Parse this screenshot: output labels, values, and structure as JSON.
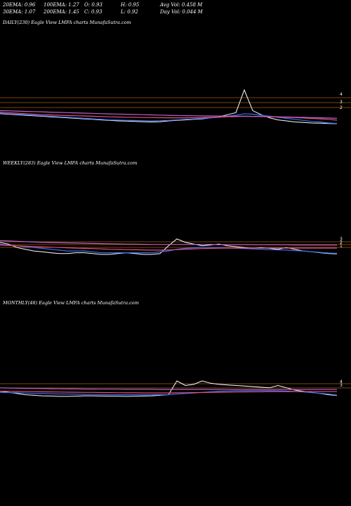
{
  "stats": {
    "ema20": "20EMA: 0.96",
    "ema100": "100EMA: 1.27",
    "open": "O: 0.93",
    "high": "H: 0.95",
    "avg_vol": "Avg Vol: 0.458 M",
    "ema30": "30EMA: 1.07",
    "ema200": "200EMA: 1.45",
    "close": "C: 0.93",
    "low": "L: 0.92",
    "day_vol": "Day Vol: 0.044 M"
  },
  "colors": {
    "background": "#000000",
    "price": "#ffffff",
    "ema_short": "#3a6df0",
    "ema_mid": "#e05080",
    "ema_long": "#c060c0",
    "level_line": "#a05a10"
  },
  "chart_data": [
    {
      "type": "line",
      "title": "DAILY(230) Eagle  View  LMFA charts MunafaSutra.com",
      "yticks": [
        "4",
        "3",
        "2"
      ],
      "series": [
        {
          "values": [
            1.9,
            1.85,
            1.8,
            1.75,
            1.7,
            1.65,
            1.6,
            1.55,
            1.5,
            1.45,
            1.4,
            1.35,
            1.3,
            1.25,
            1.2,
            1.18,
            1.15,
            1.12,
            1.1,
            1.12,
            1.2,
            1.25,
            1.3,
            1.35,
            1.4,
            1.5,
            1.6,
            1.8,
            2.0,
            4.2,
            2.2,
            1.8,
            1.5,
            1.3,
            1.2,
            1.1,
            1.05,
            1.0,
            0.98,
            0.95,
            0.93
          ]
        },
        {
          "values": [
            1.95,
            1.9,
            1.85,
            1.8,
            1.75,
            1.7,
            1.65,
            1.6,
            1.55,
            1.5,
            1.45,
            1.4,
            1.35,
            1.3,
            1.28,
            1.26,
            1.24,
            1.22,
            1.2,
            1.22,
            1.25,
            1.3,
            1.35,
            1.4,
            1.45,
            1.5,
            1.55,
            1.65,
            1.75,
            1.9,
            1.85,
            1.75,
            1.65,
            1.55,
            1.45,
            1.35,
            1.25,
            1.15,
            1.1,
            1.0,
            0.96
          ]
        },
        {
          "values": [
            2.05,
            2.0,
            1.95,
            1.9,
            1.85,
            1.8,
            1.78,
            1.75,
            1.72,
            1.7,
            1.68,
            1.65,
            1.62,
            1.6,
            1.58,
            1.56,
            1.55,
            1.53,
            1.52,
            1.51,
            1.5,
            1.5,
            1.5,
            1.52,
            1.54,
            1.56,
            1.58,
            1.6,
            1.62,
            1.65,
            1.64,
            1.62,
            1.6,
            1.58,
            1.55,
            1.52,
            1.48,
            1.44,
            1.4,
            1.35,
            1.27
          ]
        },
        {
          "values": [
            2.2,
            2.18,
            2.15,
            2.12,
            2.1,
            2.08,
            2.05,
            2.02,
            2.0,
            1.98,
            1.95,
            1.93,
            1.9,
            1.88,
            1.86,
            1.84,
            1.82,
            1.8,
            1.78,
            1.76,
            1.74,
            1.72,
            1.71,
            1.7,
            1.69,
            1.68,
            1.67,
            1.66,
            1.65,
            1.65,
            1.64,
            1.63,
            1.62,
            1.6,
            1.58,
            1.56,
            1.54,
            1.52,
            1.5,
            1.48,
            1.45
          ]
        }
      ]
    },
    {
      "type": "line",
      "title": "WEEKLY(283) Eagle  View  LMFA charts MunafaSutra.com",
      "yticks": [
        "3",
        "2",
        "1"
      ],
      "series": [
        {
          "values": [
            1.6,
            1.5,
            1.3,
            1.2,
            1.1,
            1.05,
            1.0,
            0.95,
            0.95,
            1.0,
            1.0,
            0.95,
            0.9,
            0.9,
            0.95,
            1.0,
            0.95,
            0.9,
            0.9,
            0.95,
            1.4,
            1.8,
            1.6,
            1.5,
            1.4,
            1.45,
            1.5,
            1.4,
            1.35,
            1.3,
            1.25,
            1.3,
            1.25,
            1.2,
            1.3,
            1.2,
            1.1,
            1.05,
            1.0,
            0.95,
            0.93
          ]
        },
        {
          "values": [
            1.5,
            1.45,
            1.4,
            1.35,
            1.3,
            1.25,
            1.2,
            1.15,
            1.1,
            1.1,
            1.1,
            1.05,
            1.0,
            1.0,
            1.0,
            1.0,
            1.0,
            1.0,
            1.0,
            1.05,
            1.1,
            1.2,
            1.25,
            1.28,
            1.3,
            1.3,
            1.3,
            1.28,
            1.26,
            1.24,
            1.22,
            1.2,
            1.18,
            1.16,
            1.15,
            1.12,
            1.1,
            1.06,
            1.02,
            0.98,
            0.96
          ]
        },
        {
          "values": [
            1.45,
            1.42,
            1.4,
            1.38,
            1.36,
            1.34,
            1.32,
            1.3,
            1.28,
            1.26,
            1.25,
            1.24,
            1.22,
            1.2,
            1.19,
            1.18,
            1.17,
            1.16,
            1.15,
            1.15,
            1.16,
            1.18,
            1.2,
            1.22,
            1.24,
            1.25,
            1.26,
            1.27,
            1.27,
            1.27,
            1.27,
            1.27,
            1.27,
            1.27,
            1.27,
            1.27,
            1.27,
            1.27,
            1.27,
            1.27,
            1.27
          ]
        },
        {
          "values": [
            1.7,
            1.68,
            1.66,
            1.64,
            1.62,
            1.6,
            1.59,
            1.58,
            1.57,
            1.56,
            1.55,
            1.54,
            1.53,
            1.52,
            1.51,
            1.5,
            1.5,
            1.49,
            1.48,
            1.48,
            1.48,
            1.48,
            1.48,
            1.48,
            1.48,
            1.48,
            1.47,
            1.47,
            1.47,
            1.47,
            1.46,
            1.46,
            1.46,
            1.46,
            1.46,
            1.45,
            1.45,
            1.45,
            1.45,
            1.45,
            1.45
          ]
        }
      ]
    },
    {
      "type": "line",
      "title": "MONTHLY(48) Eagle  View  LMFA charts MunafaSutra.com",
      "yticks": [
        "4",
        "3"
      ],
      "series": [
        {
          "values": [
            1.3,
            1.2,
            1.1,
            1.0,
            0.95,
            0.9,
            0.88,
            0.85,
            0.85,
            0.87,
            0.9,
            0.9,
            0.88,
            0.87,
            0.86,
            0.85,
            0.86,
            0.88,
            0.9,
            0.95,
            1.0,
            2.2,
            1.8,
            1.9,
            2.2,
            2.0,
            1.9,
            1.85,
            1.8,
            1.75,
            1.7,
            1.65,
            1.6,
            1.8,
            1.6,
            1.4,
            1.3,
            1.2,
            1.1,
            1.0,
            0.93
          ]
        },
        {
          "values": [
            1.2,
            1.18,
            1.16,
            1.14,
            1.12,
            1.1,
            1.08,
            1.06,
            1.05,
            1.04,
            1.03,
            1.02,
            1.01,
            1.0,
            1.0,
            1.0,
            1.0,
            1.0,
            1.0,
            1.0,
            1.0,
            1.05,
            1.1,
            1.15,
            1.2,
            1.25,
            1.3,
            1.32,
            1.34,
            1.35,
            1.36,
            1.36,
            1.35,
            1.34,
            1.32,
            1.28,
            1.24,
            1.18,
            1.12,
            1.05,
            0.96
          ]
        },
        {
          "values": [
            1.3,
            1.29,
            1.28,
            1.27,
            1.26,
            1.25,
            1.24,
            1.23,
            1.22,
            1.21,
            1.2,
            1.2,
            1.19,
            1.18,
            1.17,
            1.16,
            1.16,
            1.15,
            1.15,
            1.15,
            1.15,
            1.16,
            1.17,
            1.18,
            1.19,
            1.2,
            1.21,
            1.22,
            1.23,
            1.24,
            1.25,
            1.25,
            1.26,
            1.26,
            1.26,
            1.27,
            1.27,
            1.27,
            1.27,
            1.27,
            1.27
          ]
        },
        {
          "values": [
            1.6,
            1.58,
            1.56,
            1.55,
            1.54,
            1.53,
            1.52,
            1.51,
            1.5,
            1.5,
            1.49,
            1.49,
            1.48,
            1.48,
            1.48,
            1.47,
            1.47,
            1.47,
            1.47,
            1.46,
            1.46,
            1.46,
            1.46,
            1.46,
            1.46,
            1.46,
            1.46,
            1.45,
            1.45,
            1.45,
            1.45,
            1.45,
            1.45,
            1.45,
            1.45,
            1.45,
            1.45,
            1.45,
            1.45,
            1.45,
            1.45
          ]
        }
      ]
    }
  ]
}
